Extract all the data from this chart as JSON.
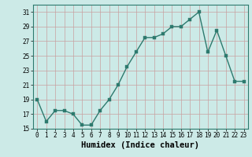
{
  "x": [
    0,
    1,
    2,
    3,
    4,
    5,
    6,
    7,
    8,
    9,
    10,
    11,
    12,
    13,
    14,
    15,
    16,
    17,
    18,
    19,
    20,
    21,
    22,
    23
  ],
  "y": [
    19,
    16,
    17.5,
    17.5,
    17,
    15.5,
    15.5,
    17.5,
    19,
    21,
    23.5,
    25.5,
    27.5,
    27.5,
    28,
    29,
    29,
    30,
    31,
    25.5,
    28.5,
    25,
    21.5,
    21.5
  ],
  "xlabel": "Humidex (Indice chaleur)",
  "ylim": [
    15,
    32
  ],
  "xlim": [
    -0.5,
    23.5
  ],
  "yticks": [
    15,
    17,
    19,
    21,
    23,
    25,
    27,
    29,
    31
  ],
  "xticks": [
    0,
    1,
    2,
    3,
    4,
    5,
    6,
    7,
    8,
    9,
    10,
    11,
    12,
    13,
    14,
    15,
    16,
    17,
    18,
    19,
    20,
    21,
    22,
    23
  ],
  "line_color": "#2d7a6e",
  "marker_color": "#2d7a6e",
  "bg_color": "#cceae7",
  "grid_color": "#c8a0a0",
  "tick_label_fontsize": 5.5,
  "xlabel_fontsize": 7.5,
  "marker_size": 2.2,
  "line_width": 1.0
}
